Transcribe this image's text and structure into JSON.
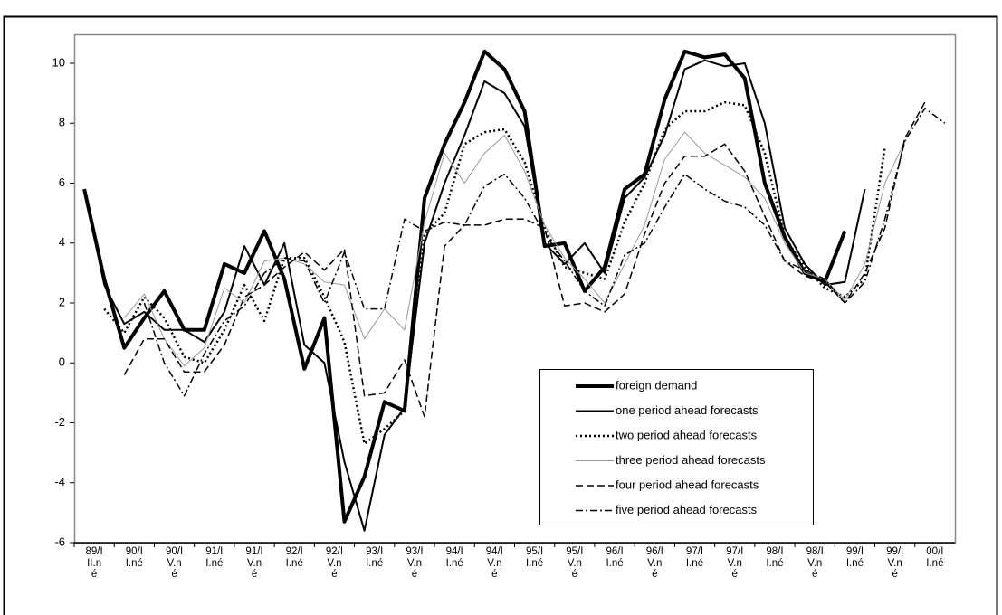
{
  "chart_data": {
    "type": "line",
    "categories": [
      "89/III.né",
      null,
      "90/II.né",
      null,
      "90/IV.né",
      null,
      "91/II.né",
      null,
      "91/IV.né",
      null,
      "92/II.né",
      null,
      "92/IV.né",
      null,
      "93/II.né",
      null,
      "93/IV.né",
      null,
      "94/II.né",
      null,
      "94/IV.né",
      null,
      "95/II.né",
      null,
      "95/IV.né",
      null,
      "96/II.né",
      null,
      "96/IV.né",
      null,
      "97/II.né",
      null,
      "97/IV.né",
      null,
      "98/II.né",
      null,
      "98/IV.né",
      null,
      "99/II.né",
      null,
      "99/IV.né",
      null,
      "00/II.né",
      null
    ],
    "ylim": [
      -6,
      11
    ],
    "yticks": [
      -6,
      -4,
      -2,
      0,
      2,
      4,
      6,
      8,
      10
    ],
    "series": [
      {
        "name": "foreign demand",
        "color": "#000000",
        "width": 4,
        "dash": "none",
        "values": [
          5.8,
          2.8,
          0.5,
          1.5,
          2.4,
          1.1,
          1.1,
          3.3,
          3.0,
          4.4,
          2.8,
          -0.2,
          1.5,
          -5.3,
          -3.8,
          -1.3,
          -1.6,
          5.5,
          7.3,
          8.7,
          10.4,
          9.8,
          8.4,
          3.9,
          4.0,
          2.4,
          3.2,
          5.8,
          6.3,
          8.8,
          10.4,
          10.2,
          10.3,
          9.5,
          6.0,
          4.2,
          3.0,
          2.7,
          4.4,
          null,
          null,
          null,
          null,
          null
        ]
      },
      {
        "name": "one period ahead forecasts",
        "color": "#000000",
        "width": 2,
        "dash": "none",
        "values": [
          5.8,
          2.6,
          1.3,
          1.7,
          1.1,
          1.1,
          0.7,
          1.7,
          3.9,
          2.6,
          4.0,
          0.6,
          0.0,
          -3.3,
          -5.6,
          -2.4,
          -1.5,
          4.0,
          6.0,
          7.6,
          9.4,
          9.0,
          7.9,
          4.0,
          3.3,
          4.0,
          3.0,
          5.5,
          6.2,
          7.6,
          9.8,
          10.1,
          9.9,
          10.0,
          8.0,
          4.5,
          3.3,
          2.6,
          2.7,
          5.8,
          null,
          null,
          null,
          null
        ]
      },
      {
        "name": "two period ahead forecasts",
        "color": "#000000",
        "width": 2.5,
        "dash": "2 3",
        "values": [
          null,
          1.8,
          1.0,
          2.2,
          1.5,
          0.2,
          0.0,
          1.1,
          2.6,
          1.4,
          3.5,
          3.5,
          2.2,
          0.7,
          -2.7,
          -2.2,
          -1.6,
          4.3,
          5.0,
          7.3,
          7.7,
          7.8,
          6.7,
          4.5,
          3.2,
          3.0,
          2.8,
          4.7,
          6.0,
          7.8,
          8.4,
          8.4,
          8.7,
          8.6,
          7.0,
          4.2,
          3.2,
          2.5,
          2.2,
          2.8,
          7.2,
          null,
          null,
          null
        ]
      },
      {
        "name": "three period ahead forecasts",
        "color": "#9a9a9a",
        "width": 1,
        "dash": "none",
        "values": [
          null,
          null,
          1.5,
          2.3,
          0.8,
          -0.1,
          0.5,
          2.5,
          2.0,
          3.4,
          3.5,
          3.3,
          2.7,
          2.6,
          0.8,
          1.8,
          1.1,
          4.7,
          7.0,
          6.0,
          7.0,
          7.6,
          6.4,
          4.6,
          3.5,
          2.8,
          2.0,
          3.3,
          4.6,
          6.8,
          7.7,
          7.0,
          6.6,
          6.2,
          5.5,
          4.0,
          3.0,
          2.8,
          2.1,
          3.3,
          6.0,
          7.4,
          null,
          null
        ]
      },
      {
        "name": "four period ahead forecasts",
        "color": "#000000",
        "width": 1.5,
        "dash": "8 4",
        "values": [
          null,
          null,
          -0.4,
          0.8,
          0.8,
          -0.3,
          -0.3,
          0.6,
          2.2,
          2.6,
          3.2,
          3.7,
          3.1,
          3.8,
          -1.1,
          -1.0,
          0.1,
          -1.8,
          3.9,
          4.6,
          4.6,
          4.8,
          4.8,
          4.5,
          1.9,
          2.0,
          1.7,
          2.3,
          4.3,
          6.0,
          6.9,
          6.9,
          7.3,
          6.4,
          4.9,
          3.4,
          2.9,
          2.7,
          2.0,
          3.0,
          4.5,
          7.5,
          8.7,
          null
        ]
      },
      {
        "name": "five period ahead forecasts",
        "color": "#000000",
        "width": 1.5,
        "dash": "8 3 2 3",
        "values": [
          null,
          null,
          null,
          2.0,
          0.0,
          -1.1,
          0.3,
          1.4,
          1.9,
          3.0,
          3.5,
          3.4,
          2.0,
          3.7,
          1.8,
          1.8,
          4.8,
          4.4,
          4.7,
          4.6,
          5.9,
          6.3,
          5.5,
          4.3,
          3.4,
          2.4,
          1.9,
          3.6,
          4.0,
          5.2,
          6.3,
          5.8,
          5.4,
          5.2,
          4.6,
          3.4,
          3.1,
          2.8,
          2.0,
          2.7,
          4.8,
          7.4,
          8.5,
          8.0
        ]
      }
    ],
    "legend": "inside-bottom-right"
  }
}
